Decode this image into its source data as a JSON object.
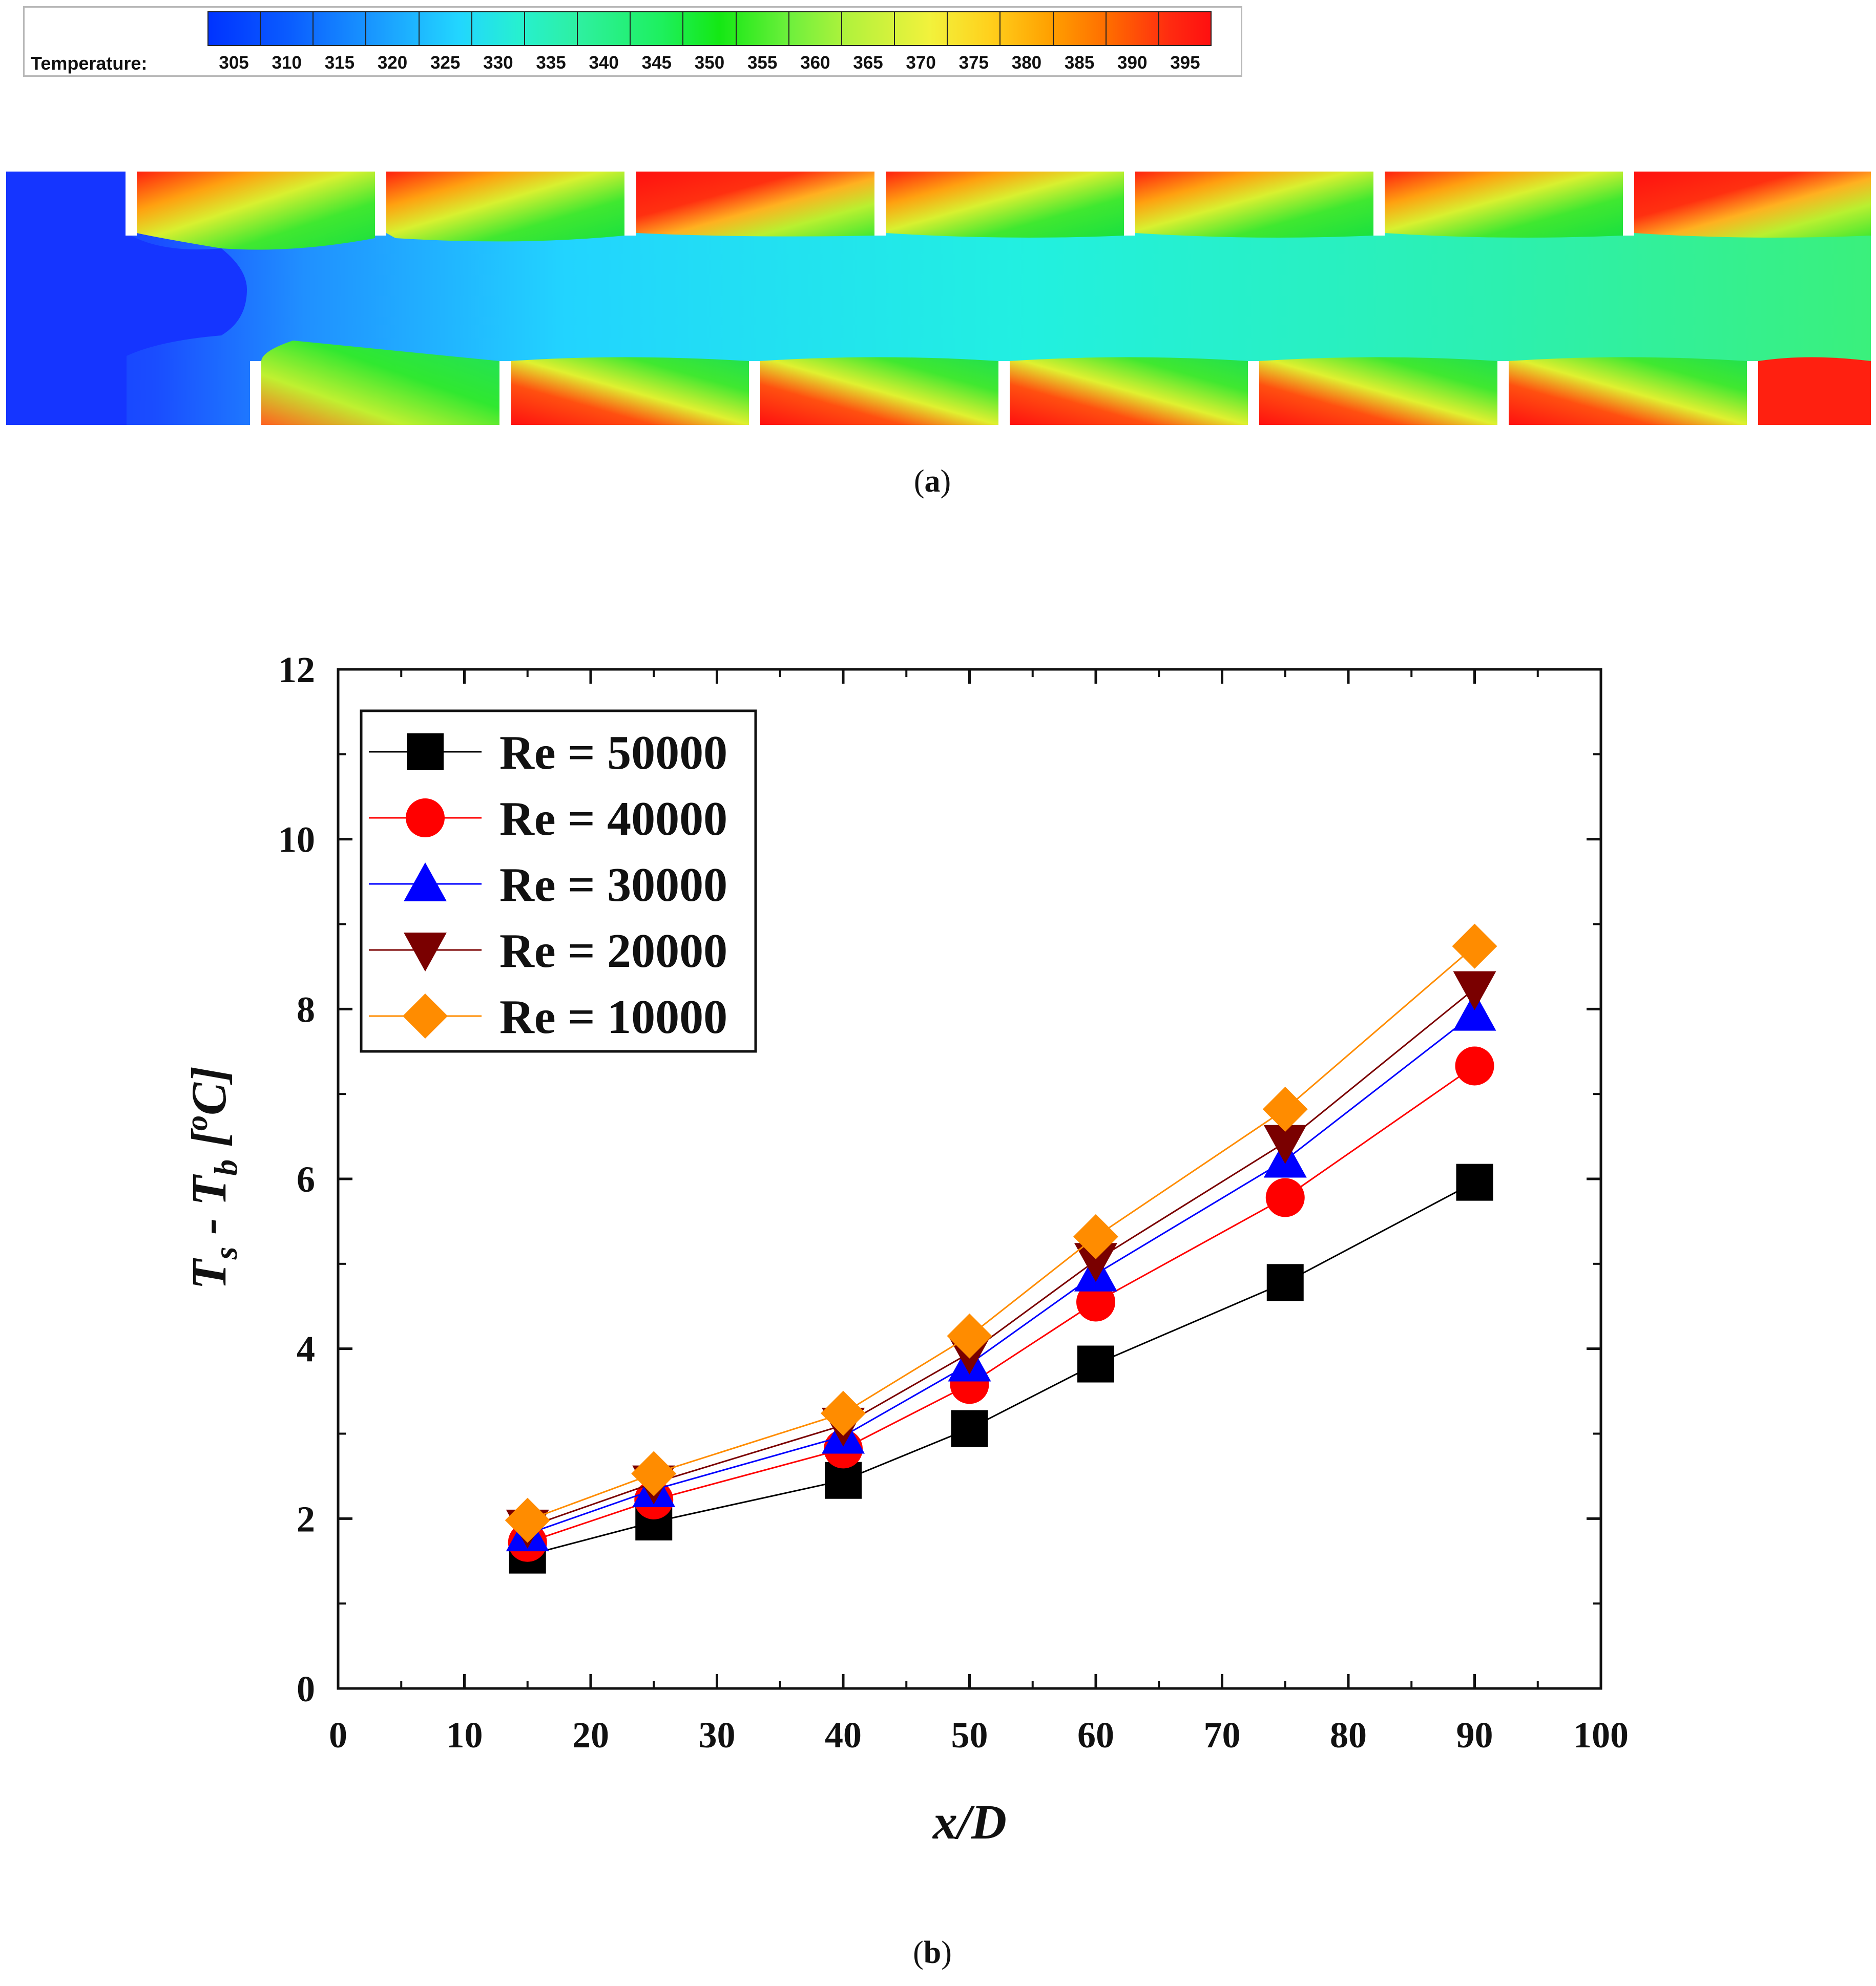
{
  "panel_a": {
    "caption": "a",
    "colorbar": {
      "label": "Temperature:",
      "ticks": [
        "305",
        "310",
        "315",
        "320",
        "325",
        "330",
        "335",
        "340",
        "345",
        "350",
        "355",
        "360",
        "365",
        "370",
        "375",
        "380",
        "385",
        "390",
        "395"
      ]
    }
  },
  "panel_b": {
    "caption": "b"
  },
  "colors": {
    "re50000": "#000000",
    "re40000": "#ff0000",
    "re30000": "#0000ff",
    "re20000": "#7a0000",
    "re10000": "#ff8c00"
  },
  "chart_data": {
    "type": "line",
    "title": "",
    "xlabel": "x/D",
    "ylabel": "T_s - T_b [°C]",
    "ylabel_parts": {
      "t1": "T",
      "s1": "s",
      "dash": " - ",
      "t2": "T",
      "s2": "b",
      "bracket": " [",
      "deg": "o",
      "unit": "C]"
    },
    "xlim": [
      0,
      100
    ],
    "ylim": [
      0,
      12
    ],
    "xticks": [
      "0",
      "10",
      "20",
      "30",
      "40",
      "50",
      "60",
      "70",
      "80",
      "90",
      "100"
    ],
    "yticks": [
      "0",
      "2",
      "4",
      "6",
      "8",
      "10",
      "12"
    ],
    "legend_position": "top-left",
    "x": [
      15,
      25,
      40,
      50,
      60,
      75,
      90
    ],
    "series": [
      {
        "name": "Re = 50000",
        "marker": "square",
        "values": [
          1.57,
          1.96,
          2.45,
          3.06,
          3.82,
          4.78,
          5.96
        ]
      },
      {
        "name": "Re = 40000",
        "marker": "circle",
        "values": [
          1.72,
          2.22,
          2.82,
          3.58,
          4.55,
          5.78,
          7.33
        ]
      },
      {
        "name": "Re = 30000",
        "marker": "triangle-up",
        "values": [
          1.82,
          2.34,
          2.97,
          3.82,
          4.88,
          6.22,
          7.95
        ]
      },
      {
        "name": "Re = 20000",
        "marker": "triangle-down",
        "values": [
          1.9,
          2.42,
          3.1,
          3.95,
          5.04,
          6.43,
          8.24
        ]
      },
      {
        "name": "Re = 10000",
        "marker": "diamond",
        "values": [
          1.98,
          2.53,
          3.24,
          4.15,
          5.32,
          6.82,
          8.74
        ]
      }
    ]
  }
}
